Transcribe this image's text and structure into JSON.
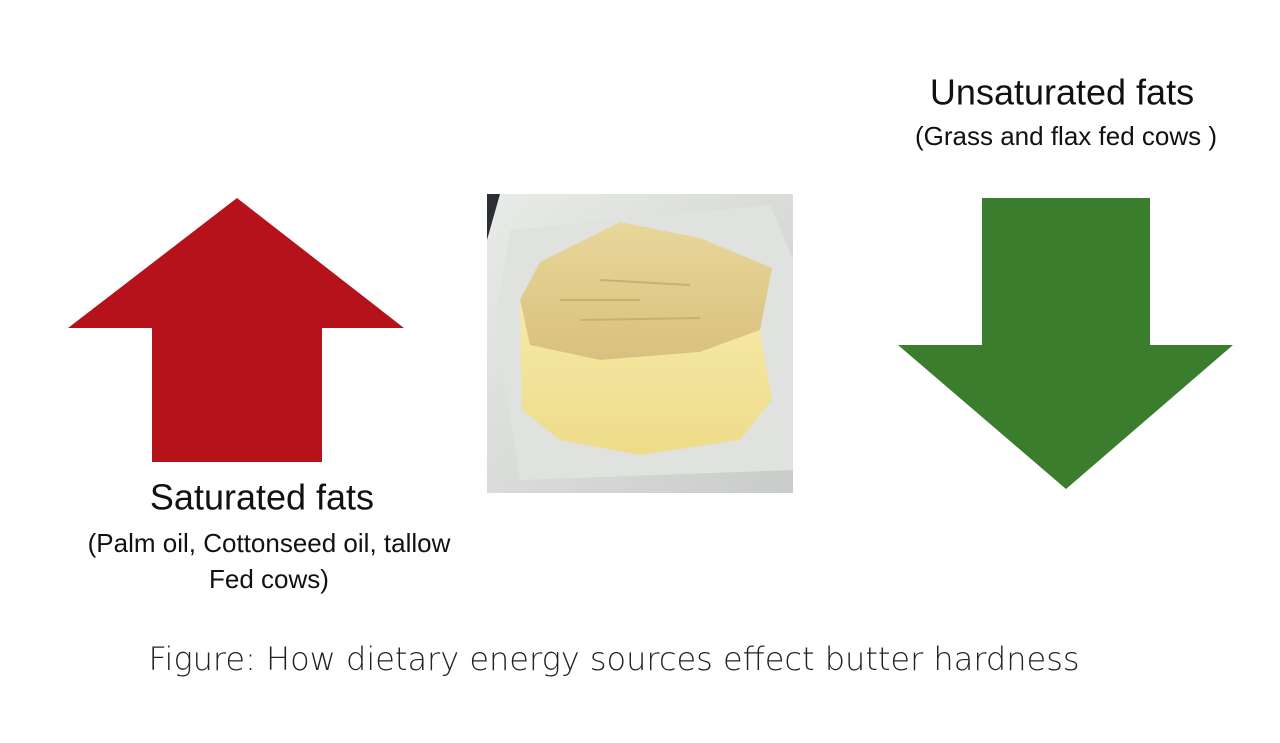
{
  "left": {
    "title": "Saturated fats",
    "subtitle_lines": [
      "(Palm oil, Cottonseed oil, tallow",
      "Fed cows)"
    ]
  },
  "right": {
    "title": "Unsaturated fats",
    "subtitle": "(Grass and flax fed cows )"
  },
  "caption": "Figure: How dietary energy sources effect butter hardness"
}
